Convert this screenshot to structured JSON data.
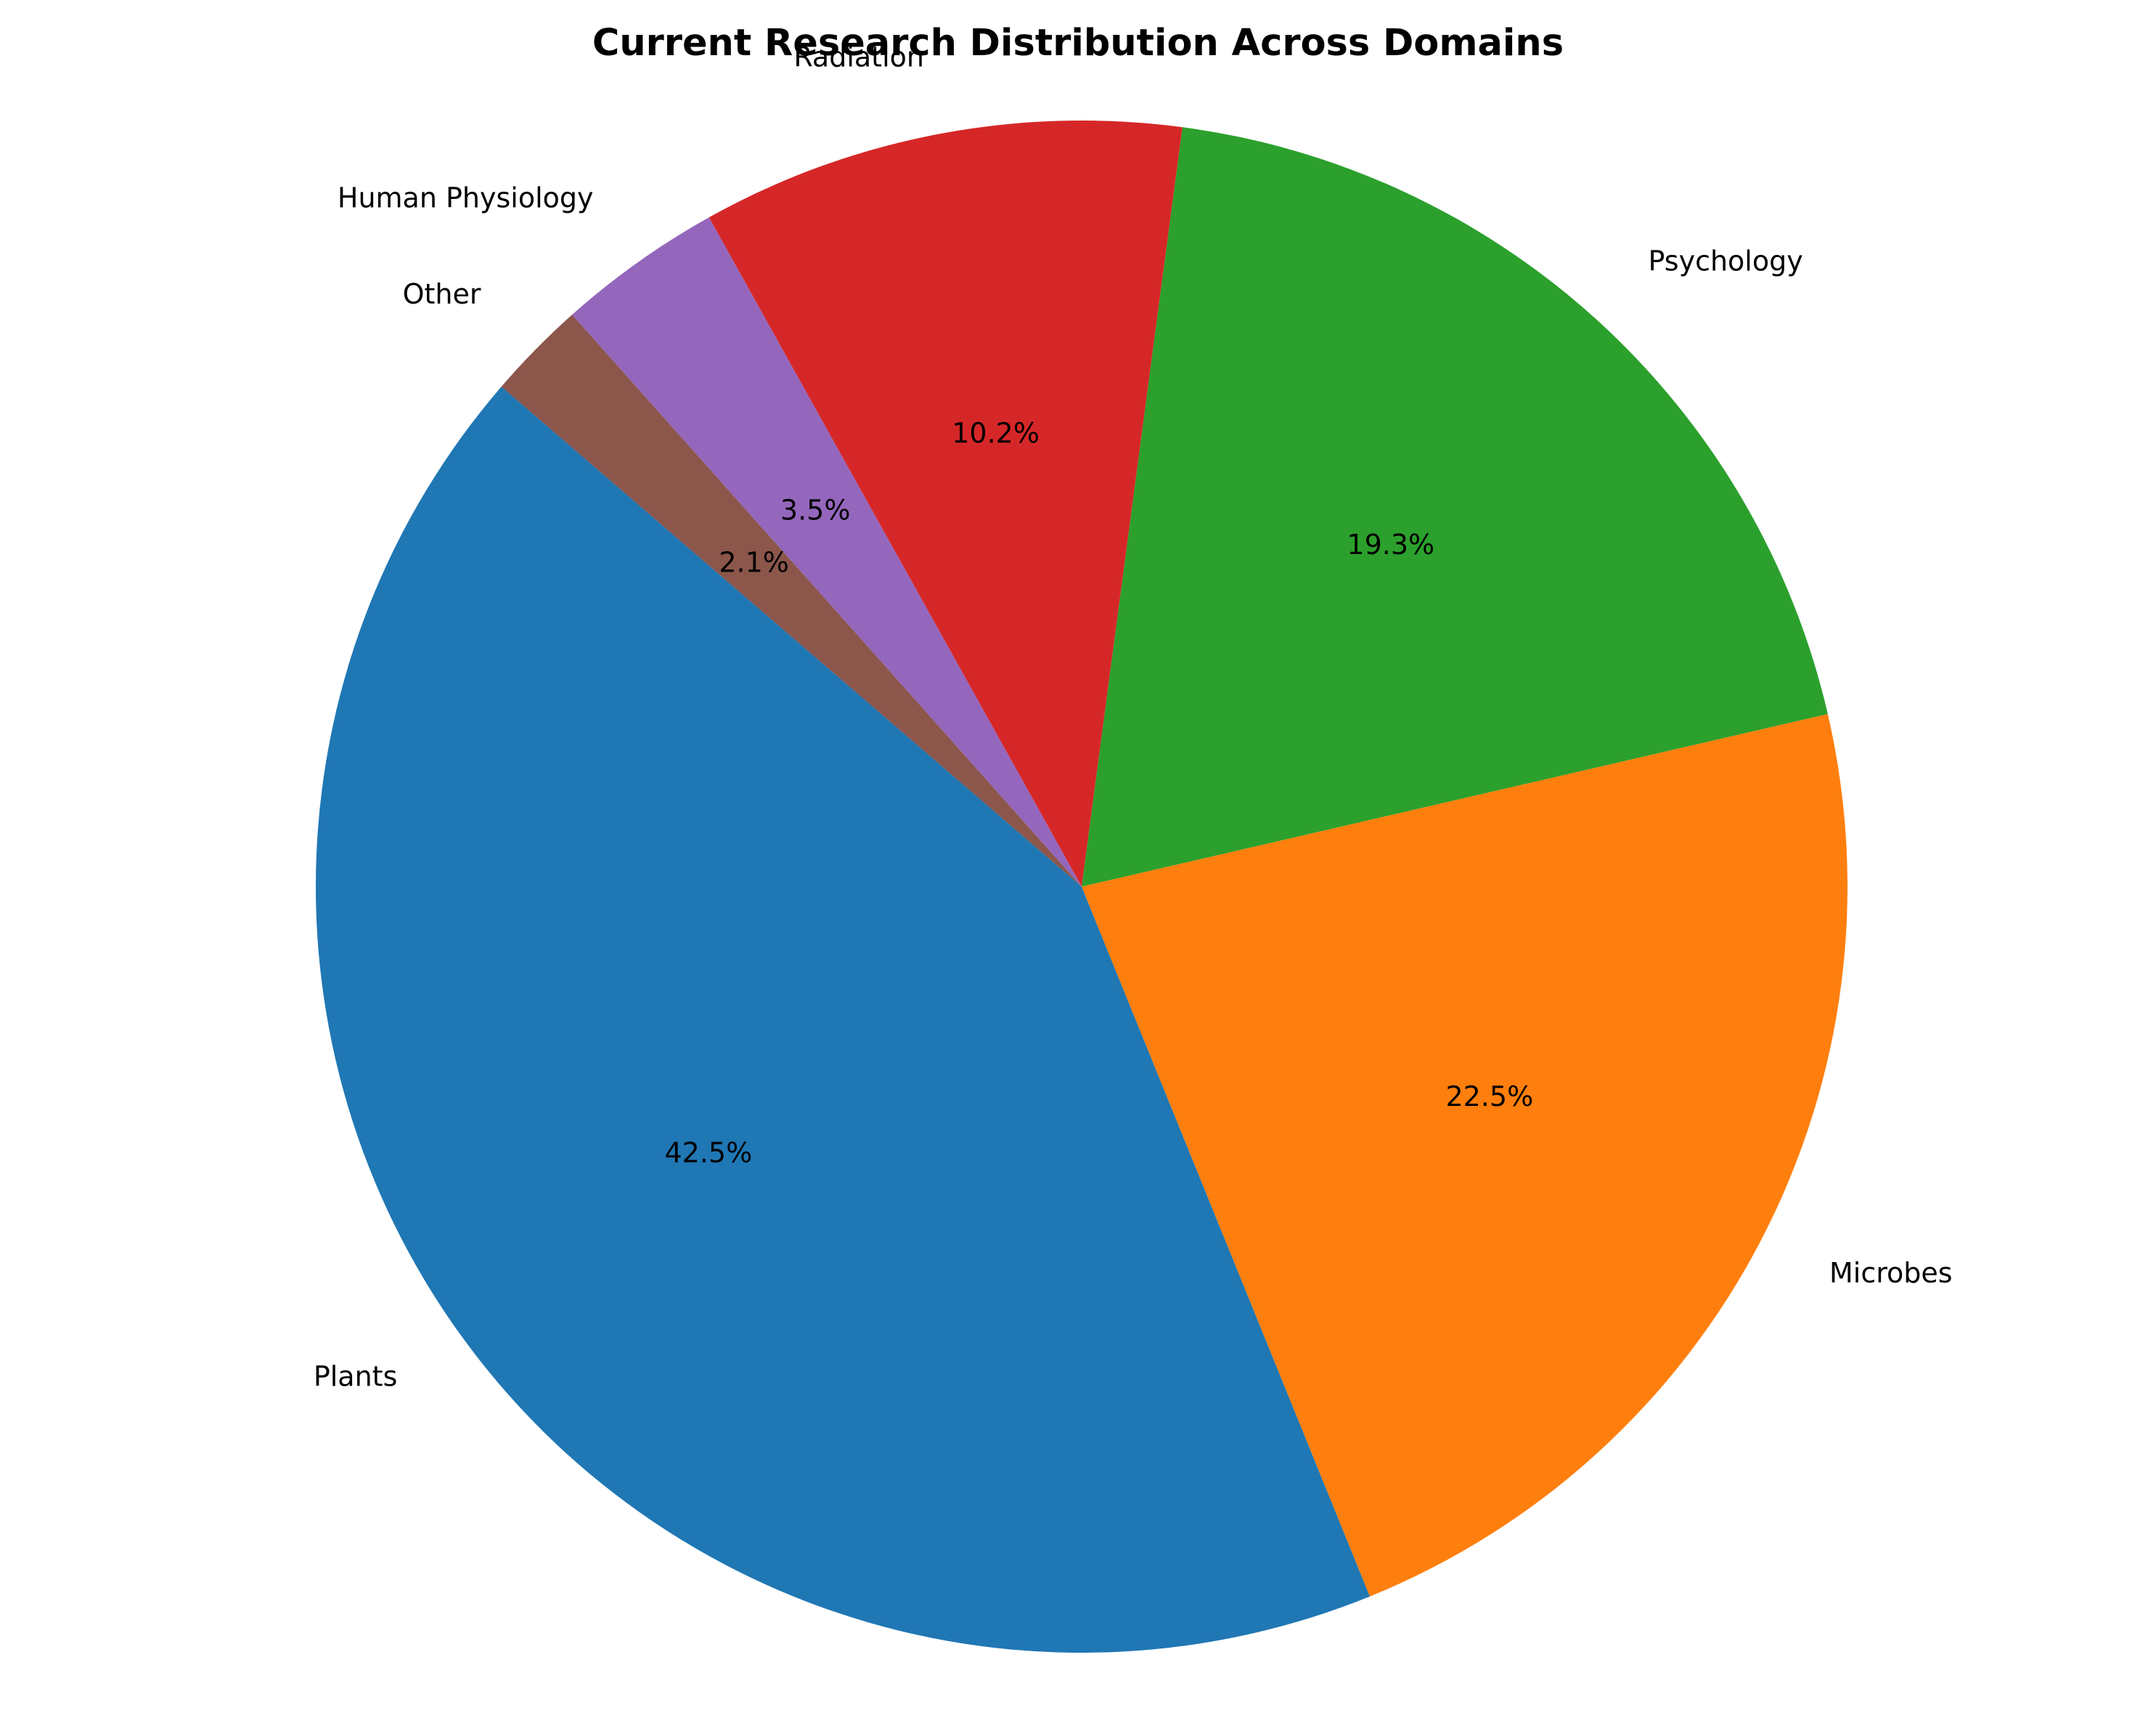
{
  "chart_data": {
    "type": "pie",
    "title": "Current Research Distribution Across Domains",
    "slices": [
      {
        "label": "Plants",
        "value": 42.5,
        "pct_label": "42.5%",
        "color": "#1f77b4"
      },
      {
        "label": "Microbes",
        "value": 22.5,
        "pct_label": "22.5%",
        "color": "#ff7f0e"
      },
      {
        "label": "Psychology",
        "value": 19.3,
        "pct_label": "19.3%",
        "color": "#2ca02c"
      },
      {
        "label": "Radiation",
        "value": 10.2,
        "pct_label": "10.2%",
        "color": "#d62728"
      },
      {
        "label": "Human Physiology",
        "value": 3.5,
        "pct_label": "3.5%",
        "color": "#9467bd"
      },
      {
        "label": "Other",
        "value": 2.1,
        "pct_label": "2.1%",
        "color": "#8c564b"
      }
    ]
  }
}
